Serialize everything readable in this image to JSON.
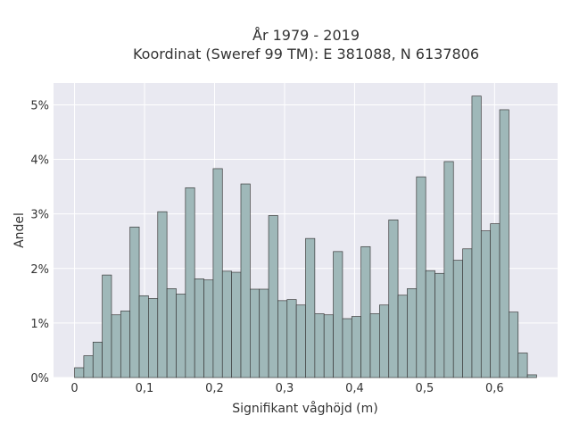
{
  "chart_data": {
    "type": "bar",
    "title": "År 1979 - 2019",
    "subtitle": "Koordinat (Sweref 99 TM): E 381088, N 6137806",
    "xlabel": "Signifikant våghöjd (m)",
    "ylabel": "Andel",
    "x_ticks": [
      "0",
      "0,1",
      "0,2",
      "0,3",
      "0,4",
      "0,5",
      "0,6"
    ],
    "x_tick_values": [
      0,
      0.1,
      0.2,
      0.3,
      0.4,
      0.5,
      0.6
    ],
    "y_ticks": [
      "0%",
      "1%",
      "2%",
      "3%",
      "4%",
      "5%"
    ],
    "y_tick_values": [
      0,
      1,
      2,
      3,
      4,
      5
    ],
    "xlim": [
      -0.03,
      0.69
    ],
    "ylim": [
      0,
      5.4
    ],
    "bin_width": 0.0132,
    "bin_start": 0,
    "values": [
      0.18,
      0.4,
      0.65,
      1.88,
      1.15,
      1.22,
      2.76,
      1.5,
      1.45,
      3.04,
      1.63,
      1.53,
      3.48,
      1.81,
      1.79,
      3.83,
      1.95,
      1.93,
      3.55,
      1.62,
      1.62,
      2.97,
      1.41,
      1.43,
      1.33,
      2.55,
      1.17,
      1.15,
      2.31,
      1.08,
      1.12,
      2.4,
      1.17,
      1.33,
      2.89,
      1.51,
      1.63,
      3.68,
      1.96,
      1.91,
      3.96,
      2.15,
      2.36,
      5.16,
      2.69,
      2.82,
      4.91,
      1.2,
      0.45,
      0.05
    ],
    "grid": true,
    "legend": "none",
    "colors": {
      "bar_fill": "#9fb8b9",
      "bar_stroke": "#3c3c3c",
      "plot_background": "#e9e9f1",
      "grid": "#ffffff"
    }
  }
}
